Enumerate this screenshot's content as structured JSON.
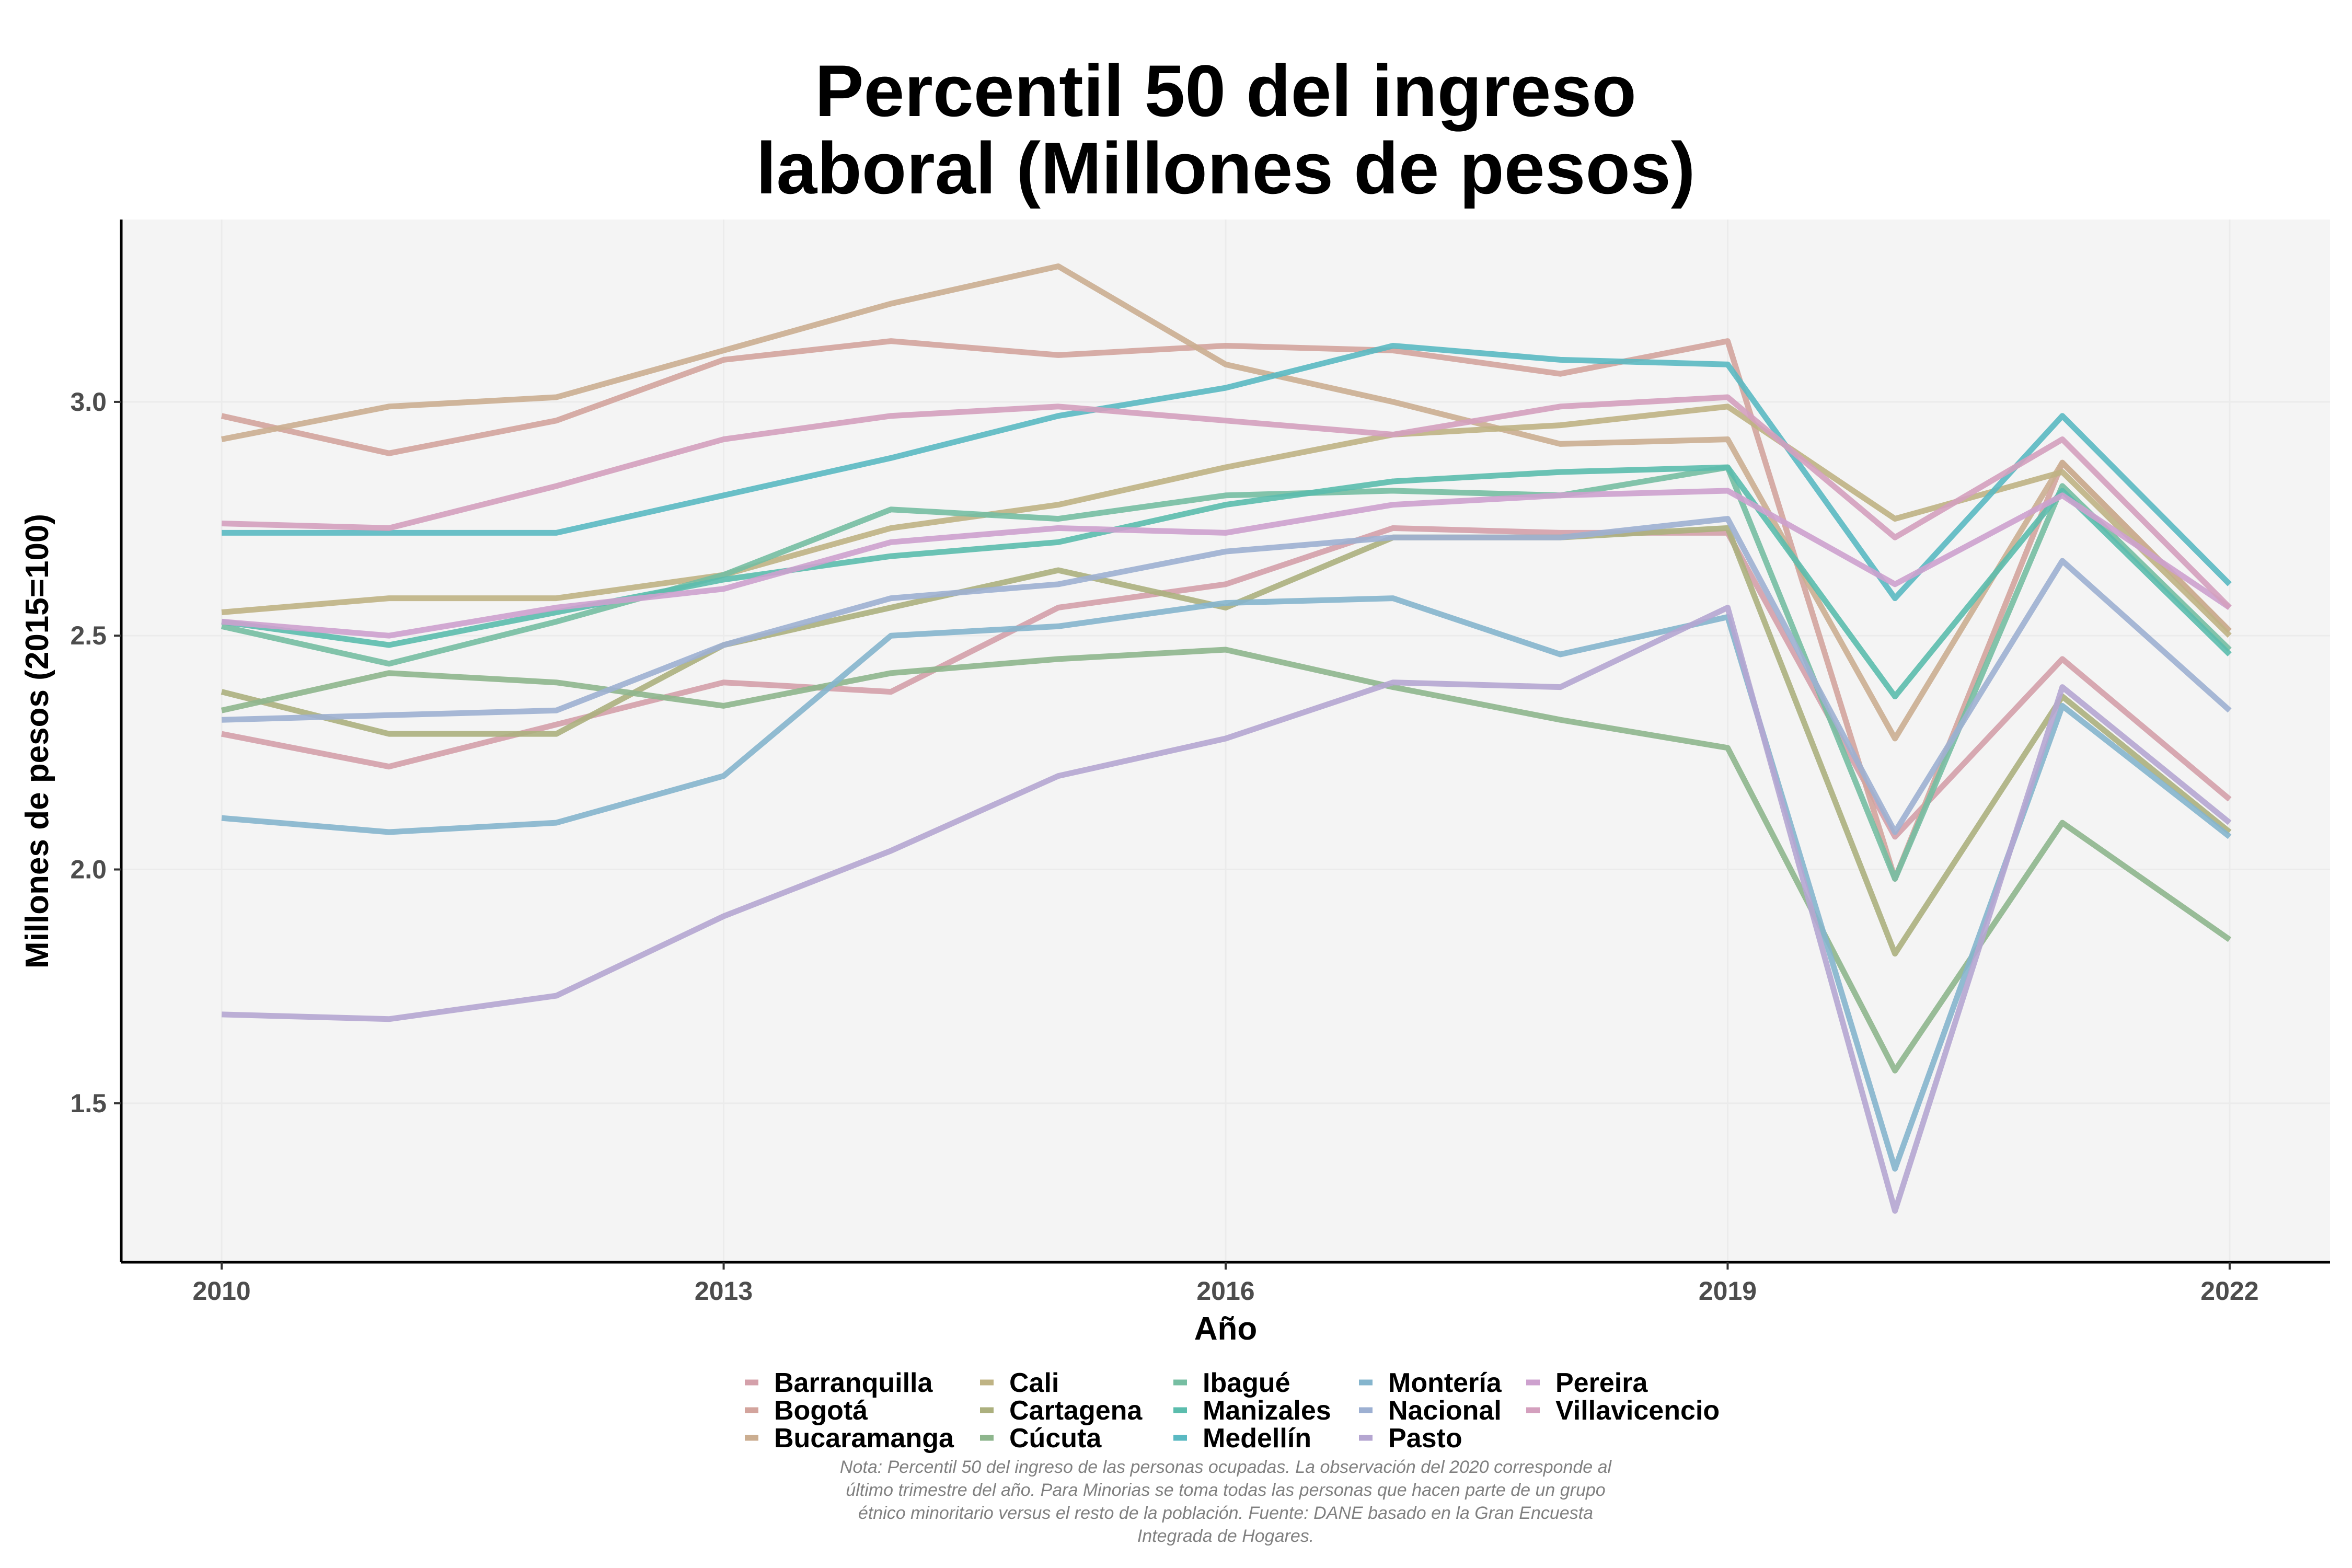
{
  "chart_data": {
    "type": "line",
    "title": [
      "Percentil 50 del ingreso",
      "laboral (Millones de pesos)"
    ],
    "xlabel": "Año",
    "ylabel": "Millones de pesos (2015=100)",
    "x": [
      2010,
      2011,
      2012,
      2013,
      2014,
      2015,
      2016,
      2017,
      2018,
      2019,
      2020,
      2021,
      2022
    ],
    "xticks": [
      2010,
      2013,
      2016,
      2019,
      2022
    ],
    "xtick_labels": [
      "2010",
      "2013",
      "2016",
      "2019",
      "2022"
    ],
    "yticks": [
      1.5,
      2.0,
      2.5,
      3.0
    ],
    "ytick_labels": [
      "1.5",
      "2.0",
      "2.5",
      "3.0"
    ],
    "xlim": [
      2009.4,
      2022.6
    ],
    "ylim": [
      1.16,
      3.39
    ],
    "grid": true,
    "legend_position": "bottom",
    "series": [
      {
        "name": "Barranquilla",
        "color": "#D4A0AA",
        "values": [
          2.29,
          2.22,
          2.31,
          2.4,
          2.38,
          2.56,
          2.61,
          2.73,
          2.72,
          2.72,
          2.07,
          2.45,
          2.15
        ]
      },
      {
        "name": "Bogotá",
        "color": "#D3A49D",
        "values": [
          2.97,
          2.89,
          2.96,
          3.09,
          3.13,
          3.1,
          3.12,
          3.11,
          3.06,
          3.13,
          1.98,
          2.87,
          2.51
        ]
      },
      {
        "name": "Bucaramanga",
        "color": "#CBAE91",
        "values": [
          2.92,
          2.99,
          3.01,
          3.11,
          3.21,
          3.29,
          3.08,
          3.0,
          2.91,
          2.92,
          2.28,
          2.87,
          2.51
        ]
      },
      {
        "name": "Cali",
        "color": "#BFB384",
        "values": [
          2.55,
          2.58,
          2.58,
          2.63,
          2.73,
          2.78,
          2.86,
          2.93,
          2.95,
          2.99,
          2.75,
          2.85,
          2.5
        ]
      },
      {
        "name": "Cartagena",
        "color": "#ACB07E",
        "values": [
          2.38,
          2.29,
          2.29,
          2.48,
          2.56,
          2.64,
          2.56,
          2.71,
          2.71,
          2.73,
          1.82,
          2.37,
          2.08
        ]
      },
      {
        "name": "Cúcuta",
        "color": "#8EB68D",
        "values": [
          2.34,
          2.42,
          2.4,
          2.35,
          2.42,
          2.45,
          2.47,
          2.39,
          2.32,
          2.26,
          1.57,
          2.1,
          1.85
        ]
      },
      {
        "name": "Ibagué",
        "color": "#76BEA2",
        "values": [
          2.52,
          2.44,
          2.53,
          2.63,
          2.77,
          2.75,
          2.8,
          2.81,
          2.8,
          2.86,
          1.98,
          2.82,
          2.47
        ]
      },
      {
        "name": "Manizales",
        "color": "#5BBDAD",
        "values": [
          2.53,
          2.48,
          2.55,
          2.62,
          2.67,
          2.7,
          2.78,
          2.83,
          2.85,
          2.86,
          2.37,
          2.81,
          2.46
        ]
      },
      {
        "name": "Medellín",
        "color": "#5AB9C2",
        "values": [
          2.72,
          2.72,
          2.72,
          2.8,
          2.88,
          2.97,
          3.03,
          3.12,
          3.09,
          3.08,
          2.58,
          2.97,
          2.61
        ]
      },
      {
        "name": "Montería",
        "color": "#85B5CD",
        "values": [
          2.11,
          2.08,
          2.1,
          2.2,
          2.5,
          2.52,
          2.57,
          2.58,
          2.46,
          2.54,
          1.36,
          2.35,
          2.07
        ]
      },
      {
        "name": "Nacional",
        "color": "#9DB0D2",
        "values": [
          2.32,
          2.33,
          2.34,
          2.48,
          2.58,
          2.61,
          2.68,
          2.71,
          2.71,
          2.75,
          2.08,
          2.66,
          2.34
        ]
      },
      {
        "name": "Pasto",
        "color": "#B5A6D1",
        "values": [
          1.69,
          1.68,
          1.73,
          1.9,
          2.04,
          2.2,
          2.28,
          2.4,
          2.39,
          2.56,
          1.27,
          2.39,
          2.1
        ]
      },
      {
        "name": "Pereira",
        "color": "#CDA1CE",
        "values": [
          2.53,
          2.5,
          2.56,
          2.6,
          2.7,
          2.73,
          2.72,
          2.78,
          2.8,
          2.81,
          2.61,
          2.8,
          2.56
        ]
      },
      {
        "name": "Villavicencio",
        "color": "#D4A0BE",
        "values": [
          2.74,
          2.73,
          2.82,
          2.92,
          2.97,
          2.99,
          2.96,
          2.93,
          2.99,
          3.01,
          2.71,
          2.92,
          2.56
        ]
      }
    ],
    "note": [
      "Nota: Percentil 50 del ingreso de las personas ocupadas. La observación del 2020 corresponde al",
      "último trimestre del año. Para Minorias se toma todas las personas que hacen parte de un grupo",
      "étnico minoritario versus el resto de la población. Fuente: DANE basado en la Gran Encuesta",
      "Integrada de Hogares."
    ]
  }
}
